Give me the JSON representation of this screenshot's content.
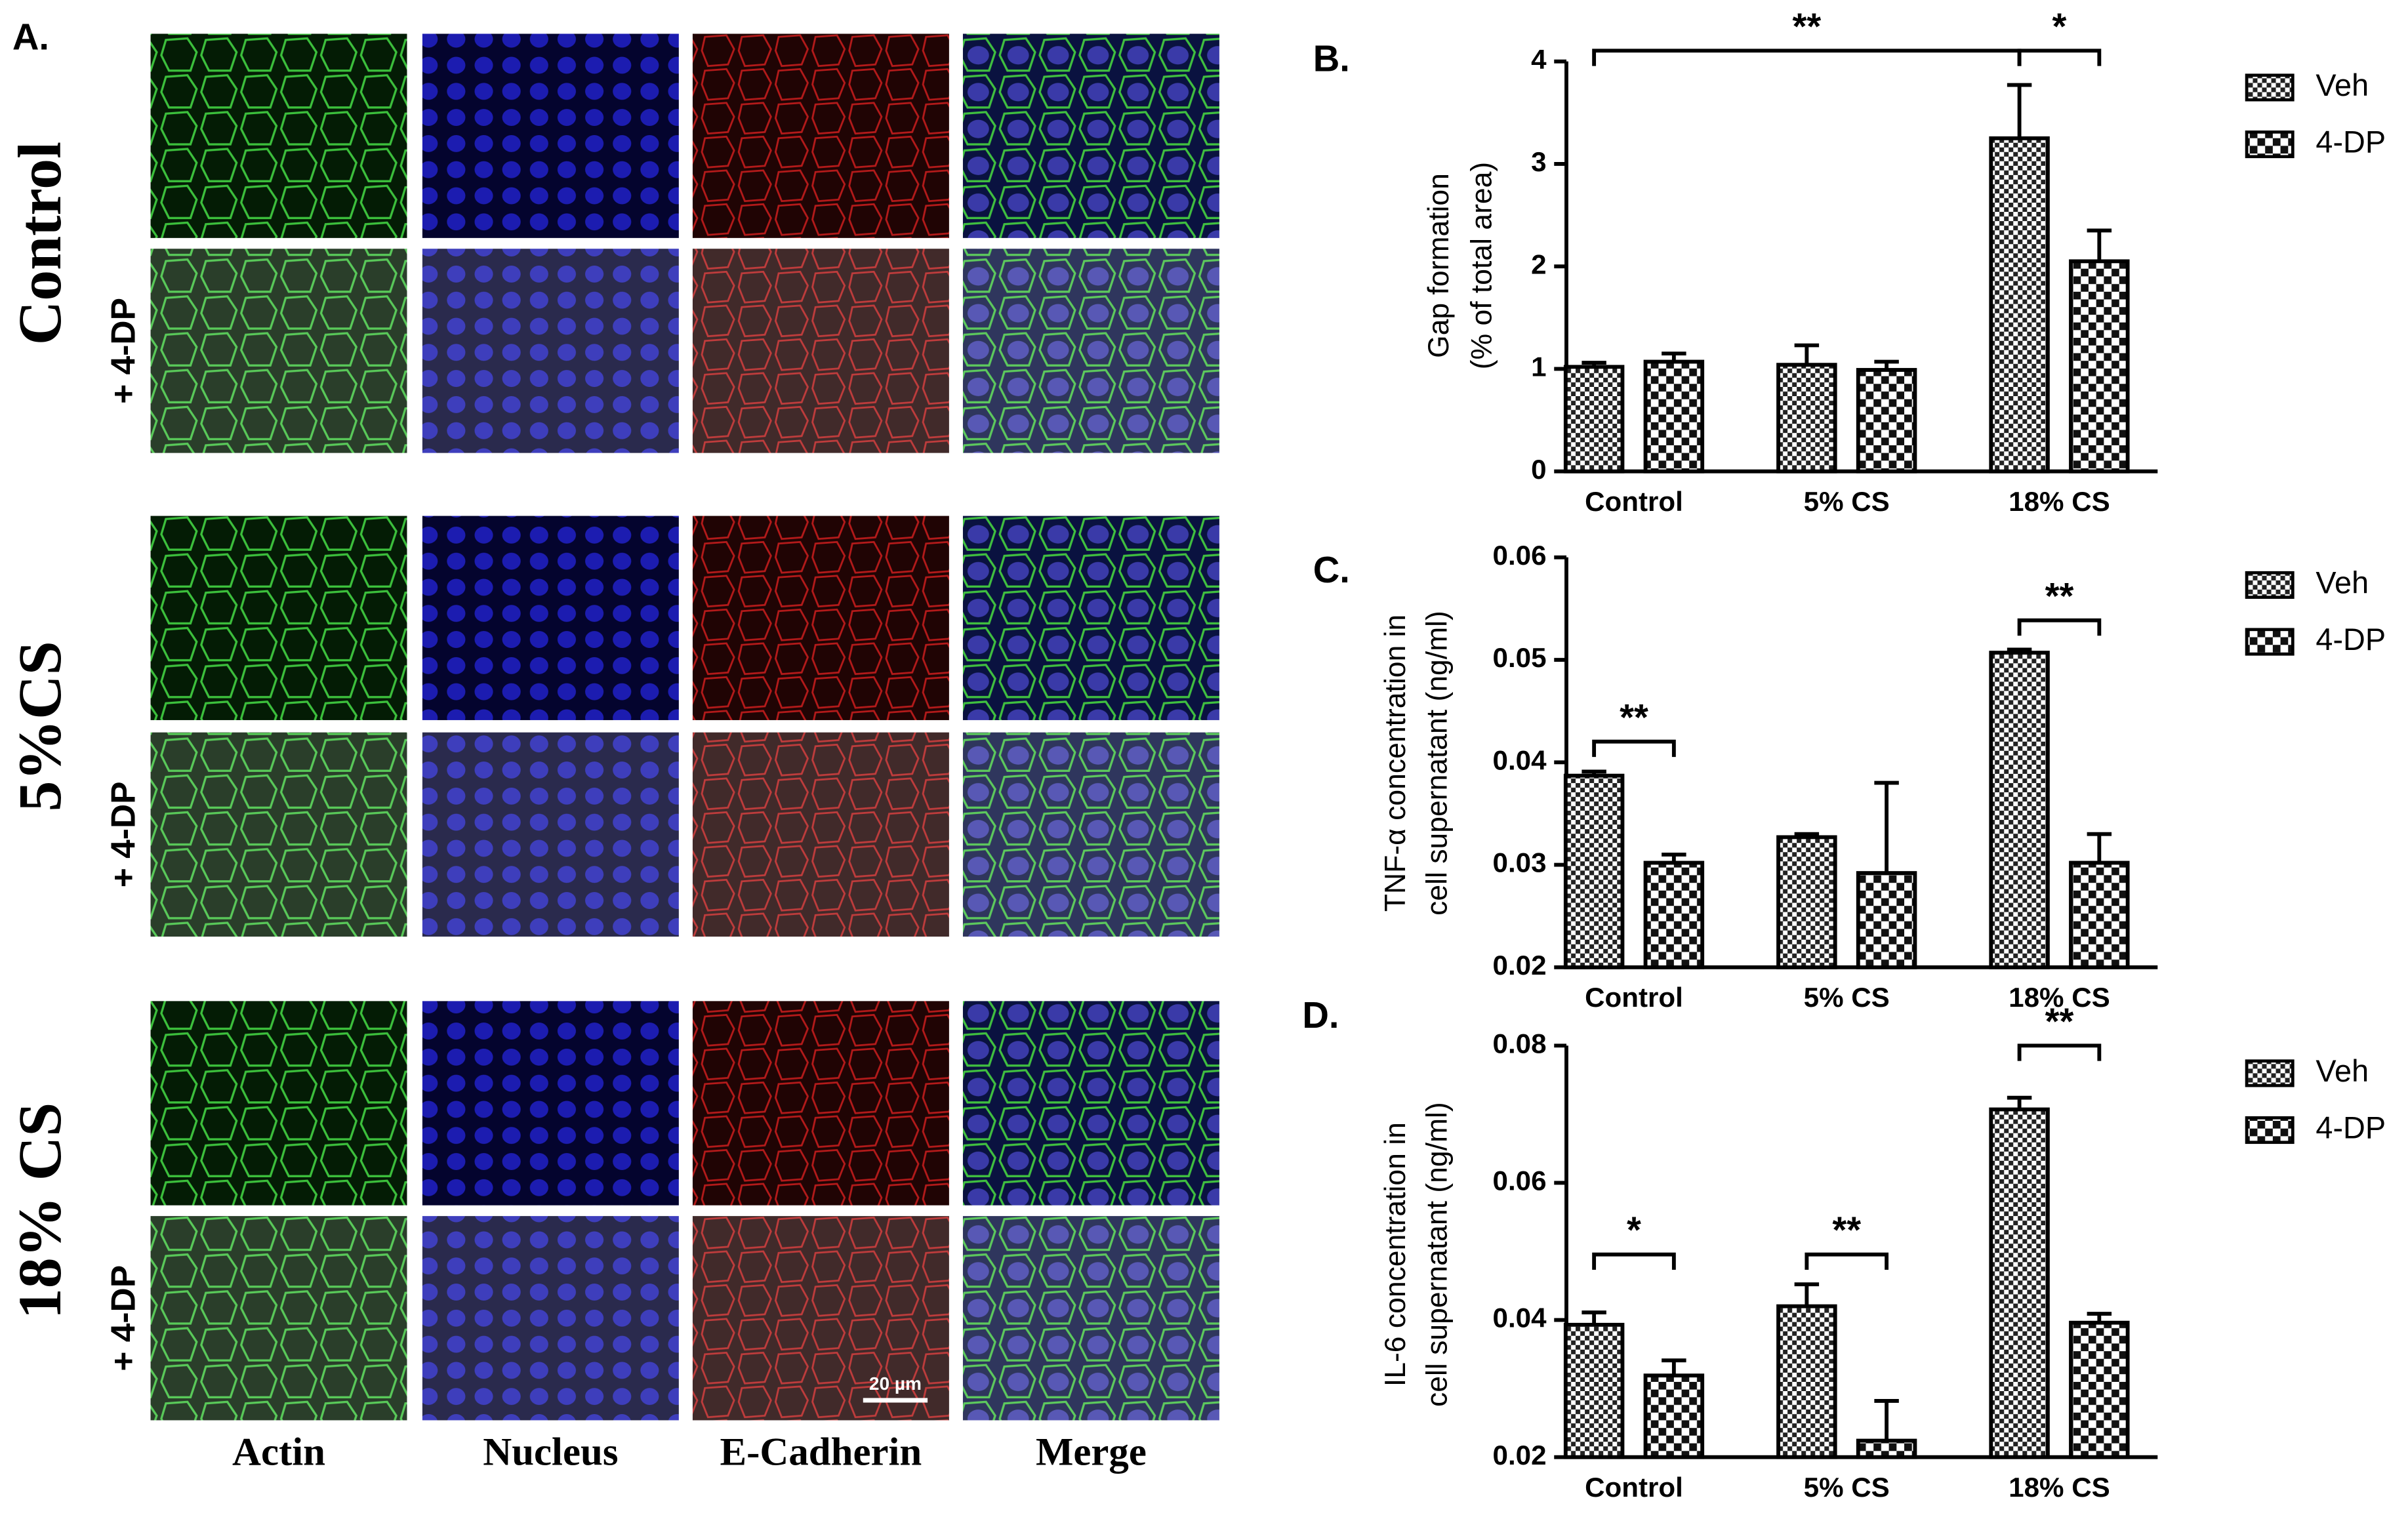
{
  "panel_a": {
    "label": "A.",
    "rows": [
      {
        "label": "Control",
        "sub": "+ 4-DP"
      },
      {
        "label": "5%CS",
        "sub": "+ 4-DP"
      },
      {
        "label": "18% CS",
        "sub": "+ 4-DP"
      }
    ],
    "columns": [
      "Actin",
      "Nucleus",
      "E-Cadherin",
      "Merge"
    ],
    "scale_bar": "20 µm"
  },
  "chart_data": [
    {
      "type": "bar",
      "label": "B.",
      "ylabel": [
        "Gap formation",
        "(% of total area)"
      ],
      "categories": [
        "Control",
        "5% CS",
        "18% CS"
      ],
      "series": [
        {
          "name": "Veh",
          "color": "#000000",
          "values": [
            1.02,
            1.04,
            3.25
          ],
          "errors": [
            0.04,
            0.19,
            0.52
          ]
        },
        {
          "name": "4-DP",
          "color": "#000000",
          "values": [
            1.07,
            0.99,
            2.05
          ],
          "errors": [
            0.08,
            0.08,
            0.3
          ]
        }
      ],
      "ylim": [
        0,
        4
      ],
      "yticks": [
        0,
        1,
        2,
        3,
        4
      ],
      "annotations": [
        "**",
        "*"
      ]
    },
    {
      "type": "bar",
      "label": "C.",
      "ylabel": [
        "TNF-α concentration in",
        "cell supernatant (ng/ml)"
      ],
      "categories": [
        "Control",
        "5% CS",
        "18% CS"
      ],
      "series": [
        {
          "name": "Veh",
          "color": "#000000",
          "values": [
            0.0387,
            0.0327,
            0.0507
          ],
          "errors": [
            0.0004,
            0.0003,
            0.0003
          ]
        },
        {
          "name": "4-DP",
          "color": "#000000",
          "values": [
            0.0302,
            0.0292,
            0.0302
          ],
          "errors": [
            0.0008,
            0.0088,
            0.0028
          ]
        }
      ],
      "ylim": [
        0.02,
        0.06
      ],
      "yticks": [
        0.02,
        0.03,
        0.04,
        0.05,
        0.06
      ],
      "annotations": [
        "**",
        "**"
      ]
    },
    {
      "type": "bar",
      "label": "D.",
      "ylabel": [
        "IL-6 concentration in",
        "cell supernatant (ng/ml)"
      ],
      "categories": [
        "Control",
        "5% CS",
        "18% CS"
      ],
      "series": [
        {
          "name": "Veh",
          "color": "#000000",
          "values": [
            0.0393,
            0.042,
            0.0707
          ],
          "errors": [
            0.0018,
            0.0032,
            0.0017
          ]
        },
        {
          "name": "4-DP",
          "color": "#000000",
          "values": [
            0.0319,
            0.0224,
            0.0396
          ],
          "errors": [
            0.0022,
            0.0058,
            0.0013
          ]
        }
      ],
      "ylim": [
        0.02,
        0.08
      ],
      "yticks": [
        0.02,
        0.04,
        0.06,
        0.08
      ],
      "annotations": [
        "*",
        "**",
        "**"
      ]
    }
  ]
}
